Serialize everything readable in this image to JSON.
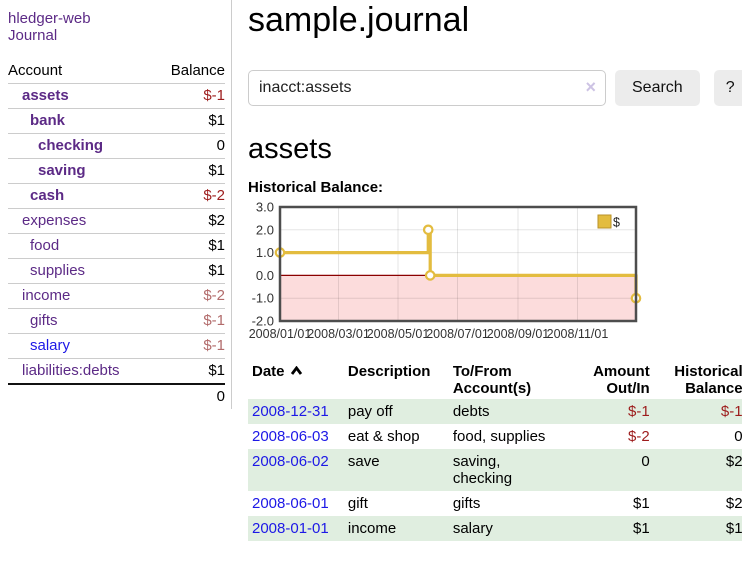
{
  "colors": {
    "accent_purple": "#5c2a86",
    "link_blue": "#1d18e6",
    "negative_strong": "#9d1c1c",
    "negative_muted": "#b26b6b",
    "row_green": "#e0eee0",
    "chart_gold": "#e3bc3f",
    "chart_negative_fill": "#fcdcdc",
    "zero_line": "#8b0000",
    "button_gray": "#ececec"
  },
  "app": {
    "brand": "hledger-web",
    "journal_link": "Journal"
  },
  "sidebar": {
    "headers": [
      "Account",
      "Balance"
    ],
    "rows": [
      {
        "name": "assets",
        "balance": "$-1",
        "depth": 1,
        "bold": true,
        "color": "purple",
        "balance_style": "neg-strong"
      },
      {
        "name": "bank",
        "balance": "$1",
        "depth": 2,
        "bold": true,
        "color": "purple",
        "balance_style": ""
      },
      {
        "name": "checking",
        "balance": "0",
        "depth": 3,
        "bold": true,
        "color": "purple",
        "balance_style": ""
      },
      {
        "name": "saving",
        "balance": "$1",
        "depth": 3,
        "bold": true,
        "color": "purple",
        "balance_style": ""
      },
      {
        "name": "cash",
        "balance": "$-2",
        "depth": 2,
        "bold": true,
        "color": "purple",
        "balance_style": "neg-strong"
      },
      {
        "name": "expenses",
        "balance": "$2",
        "depth": 1,
        "bold": false,
        "color": "purple",
        "balance_style": ""
      },
      {
        "name": "food",
        "balance": "$1",
        "depth": 2,
        "bold": false,
        "color": "purple",
        "balance_style": ""
      },
      {
        "name": "supplies",
        "balance": "$1",
        "depth": 2,
        "bold": false,
        "color": "purple",
        "balance_style": ""
      },
      {
        "name": "income",
        "balance": "$-2",
        "depth": 1,
        "bold": false,
        "color": "purple",
        "balance_style": "neg-soft"
      },
      {
        "name": "gifts",
        "balance": "$-1",
        "depth": 2,
        "bold": false,
        "color": "purple",
        "balance_style": "neg-soft"
      },
      {
        "name": "salary",
        "balance": "$-1",
        "depth": 2,
        "bold": false,
        "color": "blue",
        "balance_style": "neg-soft"
      },
      {
        "name": "liabilities:debts",
        "balance": "$1",
        "depth": 1,
        "bold": false,
        "color": "purple",
        "balance_style": "",
        "last": true
      }
    ],
    "total": "0"
  },
  "main": {
    "title": "sample.journal",
    "search": {
      "value": "inacct:assets",
      "clear_icon": "×",
      "button_label": "Search",
      "help_label": "?"
    },
    "account_heading": "assets",
    "register": {
      "headers": {
        "date": "Date",
        "description": "Description",
        "tofrom_line1": "To/From",
        "tofrom_line2": "Account(s)",
        "amount_line1": "Amount",
        "amount_line2": "Out/In",
        "balance_line1": "Historical",
        "balance_line2": "Balance"
      },
      "rows": [
        {
          "date": "2008-12-31",
          "description": "pay off",
          "accounts": "debts",
          "amount": "$-1",
          "amount_negative": true,
          "balance": "$-1",
          "balance_negative": true
        },
        {
          "date": "2008-06-03",
          "description": "eat & shop",
          "accounts": "food, supplies",
          "amount": "$-2",
          "amount_negative": true,
          "balance": "0",
          "balance_negative": false
        },
        {
          "date": "2008-06-02",
          "description": "save",
          "accounts": "saving, checking",
          "amount": "0",
          "amount_negative": false,
          "balance": "$2",
          "balance_negative": false
        },
        {
          "date": "2008-06-01",
          "description": "gift",
          "accounts": "gifts",
          "amount": "$1",
          "amount_negative": false,
          "balance": "$2",
          "balance_negative": false
        },
        {
          "date": "2008-01-01",
          "description": "income",
          "accounts": "salary",
          "amount": "$1",
          "amount_negative": false,
          "balance": "$1",
          "balance_negative": false
        }
      ]
    }
  },
  "chart_data": {
    "type": "line",
    "step": true,
    "title": "Historical Balance:",
    "series": [
      {
        "name": "$",
        "color": "#e3bc3f",
        "points": [
          [
            "2008-01-01",
            1
          ],
          [
            "2008-06-01",
            2
          ],
          [
            "2008-06-03",
            0
          ],
          [
            "2008-12-31",
            -1
          ]
        ]
      }
    ],
    "x_range": [
      "2008-01-01",
      "2008-12-31"
    ],
    "ylim": [
      -2,
      3
    ],
    "y_ticks": [
      3.0,
      2.0,
      1.0,
      0.0,
      -1.0,
      -2.0
    ],
    "x_ticks": [
      {
        "date": "2008-01-01",
        "label": "2008/01/01"
      },
      {
        "date": "2008-03-01",
        "label": "2008/03/01"
      },
      {
        "date": "2008-05-01",
        "label": "2008/05/01"
      },
      {
        "date": "2008-07-01",
        "label": "2008/07/01"
      },
      {
        "date": "2008-09-01",
        "label": "2008/09/01"
      },
      {
        "date": "2008-11-01",
        "label": "2008/11/01"
      }
    ],
    "grid": true,
    "legend_position": "top-right",
    "negative_fill": "#fcdcdc",
    "zero_line_color": "#8b0000"
  }
}
